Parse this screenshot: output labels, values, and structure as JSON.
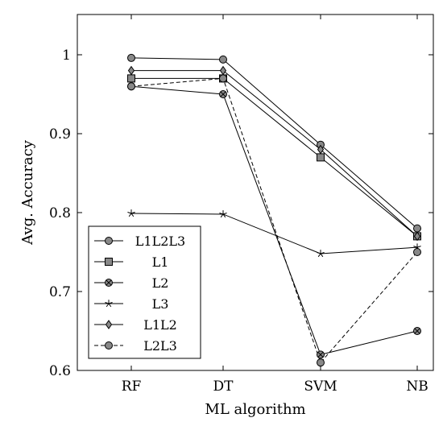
{
  "chart_data": {
    "type": "line",
    "categories": [
      "RF",
      "DT",
      "SVM",
      "NB"
    ],
    "xlabel": "ML algorithm",
    "ylabel": "Avg. Accuracy",
    "ylim": [
      0.6,
      1.05
    ],
    "yticks": [
      0.6,
      0.7,
      0.8,
      0.9,
      1.0
    ],
    "ytick_labels": [
      "0.6",
      "0.7",
      "0.8",
      "0.9",
      "1"
    ],
    "grid": false,
    "legend_position": "bottom-left",
    "series": [
      {
        "name": "L1L2L3",
        "marker": "circle",
        "line": "solid",
        "color": "#888888",
        "values": [
          0.996,
          0.994,
          0.886,
          0.78
        ]
      },
      {
        "name": "L1",
        "marker": "square",
        "line": "solid",
        "color": "#888888",
        "values": [
          0.97,
          0.97,
          0.87,
          0.77
        ]
      },
      {
        "name": "L2",
        "marker": "otimes",
        "line": "solid",
        "color": "#888888",
        "values": [
          0.96,
          0.95,
          0.62,
          0.65
        ]
      },
      {
        "name": "L3",
        "marker": "star",
        "line": "solid",
        "color": "#000000",
        "values": [
          0.799,
          0.798,
          0.748,
          0.756
        ]
      },
      {
        "name": "L1L2",
        "marker": "diamond",
        "line": "solid",
        "color": "#888888",
        "values": [
          0.98,
          0.98,
          0.88,
          0.77
        ]
      },
      {
        "name": "L2L3",
        "marker": "circle",
        "line": "dashed",
        "color": "#888888",
        "values": [
          0.96,
          0.97,
          0.61,
          0.75
        ]
      }
    ]
  }
}
